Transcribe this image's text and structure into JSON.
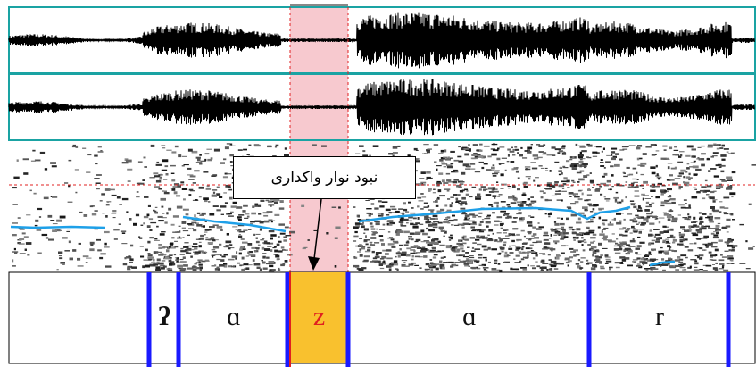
{
  "callout": {
    "text": "نبود نوار واکداری"
  },
  "segments": [
    {
      "label": "ʔ",
      "color": "#111111",
      "highlight": false
    },
    {
      "label": "ɑ",
      "color": "#111111",
      "highlight": false
    },
    {
      "label": "z",
      "color": "#e02020",
      "highlight": true
    },
    {
      "label": "ɑ",
      "color": "#111111",
      "highlight": false
    },
    {
      "label": "r",
      "color": "#111111",
      "highlight": false
    }
  ],
  "colors": {
    "selection": "#f7c9cf",
    "waveform_border": "#1aa3a3",
    "pitch": "#1ea0e8",
    "boundary": "#1a1aff",
    "highlight_fill": "#f9c12e",
    "cursor": "#e02020"
  }
}
